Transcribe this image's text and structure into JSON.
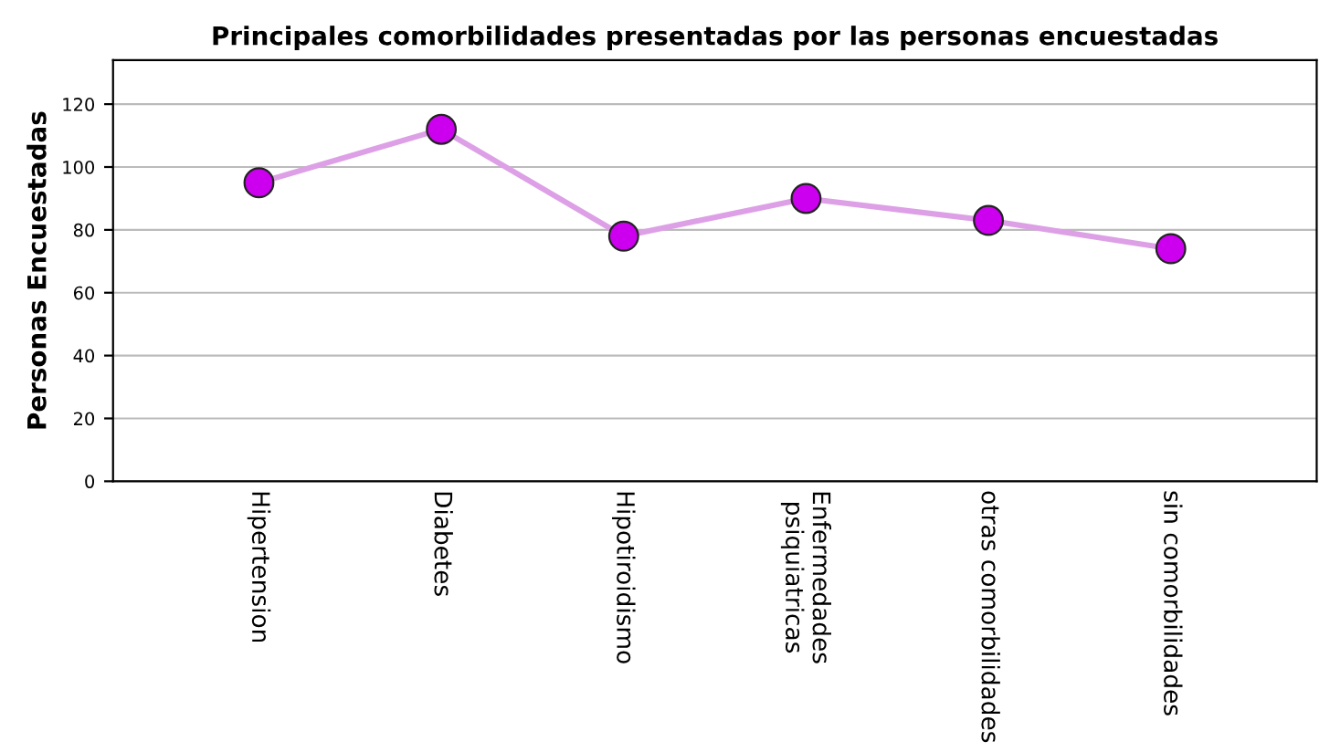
{
  "chart_data": {
    "type": "line",
    "title": "Principales comorbilidades presentadas por las personas encuestadas",
    "ylabel": "Personas Encuestadas",
    "categories": [
      "Hipertension",
      "Diabetes",
      "Hipotiroidismo",
      "Enfermedades\npsiquiatricas",
      "otras comorbilidades",
      "sin comorbilidades"
    ],
    "series": [
      {
        "color": "#dda0e6",
        "colors": [
          "#cc00ee",
          "#cc00ee",
          "#cc00ee",
          "#cc00ee",
          "#cc00ee",
          "#cc00ee"
        ],
        "values": [
          95,
          112,
          78,
          90,
          83,
          74
        ]
      }
    ],
    "ylim": [
      0,
      134
    ],
    "yticks": [
      0,
      20,
      40,
      60,
      80,
      100,
      120
    ],
    "grid": "y",
    "marker": "circle",
    "line_style": "solid"
  }
}
